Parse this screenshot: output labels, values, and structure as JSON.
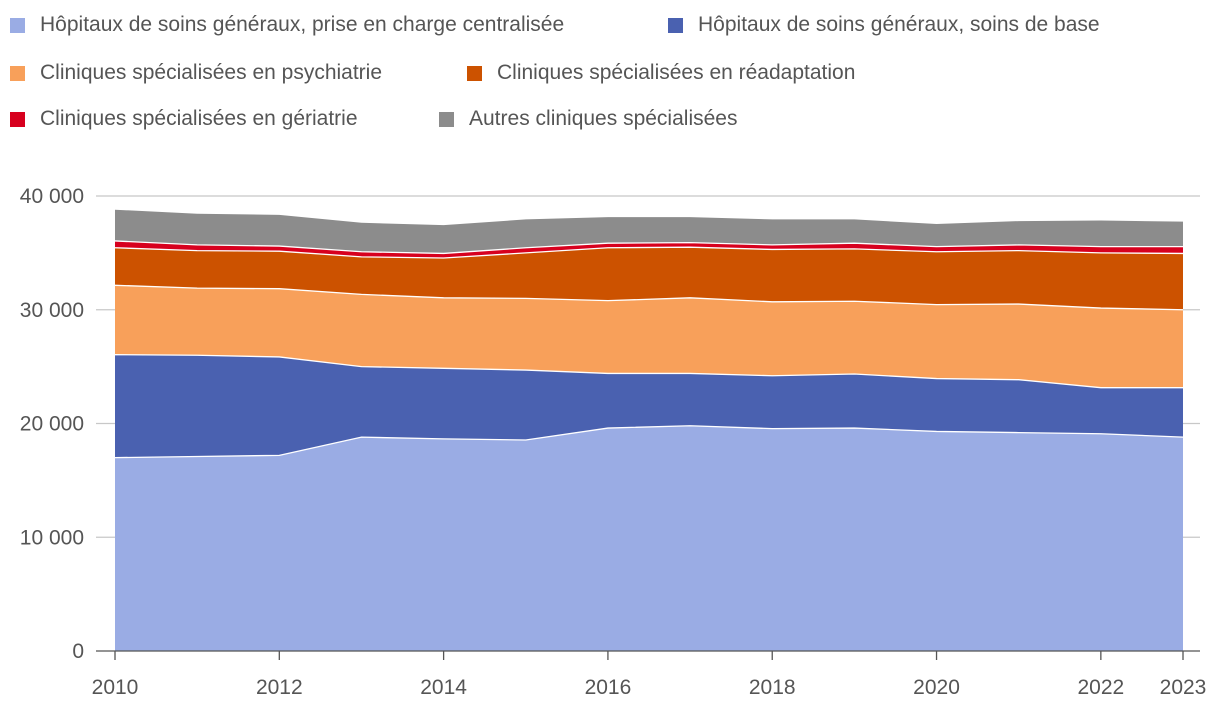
{
  "chart_data": {
    "type": "area",
    "stacked": true,
    "title": "",
    "xlabel": "",
    "ylabel": "",
    "ylim": [
      0,
      40000
    ],
    "y_ticks": [
      0,
      10000,
      20000,
      30000,
      40000
    ],
    "y_tick_labels": [
      "0",
      "10 000",
      "20 000",
      "30 000",
      "40 000"
    ],
    "x_ticks": [
      2010,
      2012,
      2014,
      2016,
      2018,
      2020,
      2022,
      2023
    ],
    "x_tick_labels": [
      "2010",
      "2012",
      "2014",
      "2016",
      "2018",
      "2020",
      "2022",
      "2023"
    ],
    "legend_position": "top",
    "grid": true,
    "x": [
      2010,
      2011,
      2012,
      2013,
      2014,
      2015,
      2016,
      2017,
      2018,
      2019,
      2020,
      2021,
      2022,
      2023
    ],
    "series": [
      {
        "name": "Hôpitaux de soins généraux, prise en charge centralisée",
        "color": "#9aace4",
        "values": [
          17000,
          17100,
          17200,
          18800,
          18650,
          18550,
          19600,
          19800,
          19550,
          19600,
          19300,
          19200,
          19100,
          18800
        ]
      },
      {
        "name": "Hôpitaux de soins généraux, soins de base",
        "color": "#4a61b0",
        "values": [
          9050,
          8900,
          8650,
          6200,
          6200,
          6150,
          4800,
          4600,
          4650,
          4750,
          4650,
          4650,
          4050,
          4350
        ]
      },
      {
        "name": "Cliniques spécialisées en psychiatrie",
        "color": "#f8a05a",
        "values": [
          6100,
          5900,
          6000,
          6350,
          6200,
          6300,
          6400,
          6650,
          6500,
          6400,
          6500,
          6650,
          7000,
          6850
        ]
      },
      {
        "name": "Cliniques spécialisées en réadaptation",
        "color": "#cc5200",
        "values": [
          3300,
          3300,
          3300,
          3300,
          3500,
          4000,
          4650,
          4450,
          4600,
          4600,
          4650,
          4700,
          4850,
          4950
        ]
      },
      {
        "name": "Cliniques spécialisées en gériatrie",
        "color": "#d7001e",
        "values": [
          600,
          500,
          450,
          450,
          400,
          450,
          400,
          400,
          400,
          500,
          450,
          500,
          550,
          600
        ]
      },
      {
        "name": "Autres cliniques spécialisées",
        "color": "#8c8c8c",
        "values": [
          2800,
          2800,
          2800,
          2600,
          2550,
          2550,
          2350,
          2300,
          2300,
          2150,
          2050,
          2150,
          2350,
          2250
        ]
      }
    ]
  },
  "colors": {
    "text": "#555555",
    "gridline": "#c8c8c8",
    "axis": "#555555",
    "separator": "#ffffff"
  }
}
